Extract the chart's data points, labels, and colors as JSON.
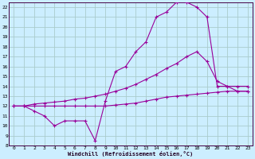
{
  "xlabel": "Windchill (Refroidissement éolien,°C)",
  "bg_color": "#cceeff",
  "grid_color": "#aacccc",
  "line_color": "#990099",
  "xlim": [
    -0.5,
    23.5
  ],
  "ylim": [
    8,
    22.5
  ],
  "xticks": [
    0,
    1,
    2,
    3,
    4,
    5,
    6,
    7,
    8,
    9,
    10,
    11,
    12,
    13,
    14,
    15,
    16,
    17,
    18,
    19,
    20,
    21,
    22,
    23
  ],
  "yticks": [
    8,
    9,
    10,
    11,
    12,
    13,
    14,
    15,
    16,
    17,
    18,
    19,
    20,
    21,
    22
  ],
  "line1_x": [
    0,
    1,
    2,
    3,
    4,
    5,
    6,
    7,
    8,
    9,
    10,
    11,
    12,
    13,
    14,
    15,
    16,
    17,
    18,
    19,
    20,
    21,
    22,
    23
  ],
  "line1_y": [
    12,
    12,
    11.5,
    11,
    10,
    10.5,
    10.5,
    10.5,
    8.5,
    12.5,
    15.5,
    16,
    17.5,
    18.5,
    21,
    21.5,
    22.5,
    22.5,
    22,
    21,
    14,
    14,
    13.5,
    13.5
  ],
  "line2_x": [
    0,
    1,
    2,
    3,
    4,
    5,
    6,
    7,
    8,
    9,
    10,
    11,
    12,
    13,
    14,
    15,
    16,
    17,
    18,
    19,
    20,
    21,
    22,
    23
  ],
  "line2_y": [
    12,
    12,
    12.2,
    12.3,
    12.4,
    12.5,
    12.7,
    12.8,
    13.0,
    13.2,
    13.5,
    13.8,
    14.2,
    14.7,
    15.2,
    15.8,
    16.3,
    17.0,
    17.5,
    16.5,
    14.5,
    14,
    14,
    14
  ],
  "line3_x": [
    0,
    1,
    2,
    3,
    4,
    5,
    6,
    7,
    8,
    9,
    10,
    11,
    12,
    13,
    14,
    15,
    16,
    17,
    18,
    19,
    20,
    21,
    22,
    23
  ],
  "line3_y": [
    12,
    12,
    12,
    12,
    12,
    12,
    12,
    12,
    12,
    12,
    12.1,
    12.2,
    12.3,
    12.5,
    12.7,
    12.9,
    13.0,
    13.1,
    13.2,
    13.3,
    13.4,
    13.5,
    13.5,
    13.5
  ]
}
